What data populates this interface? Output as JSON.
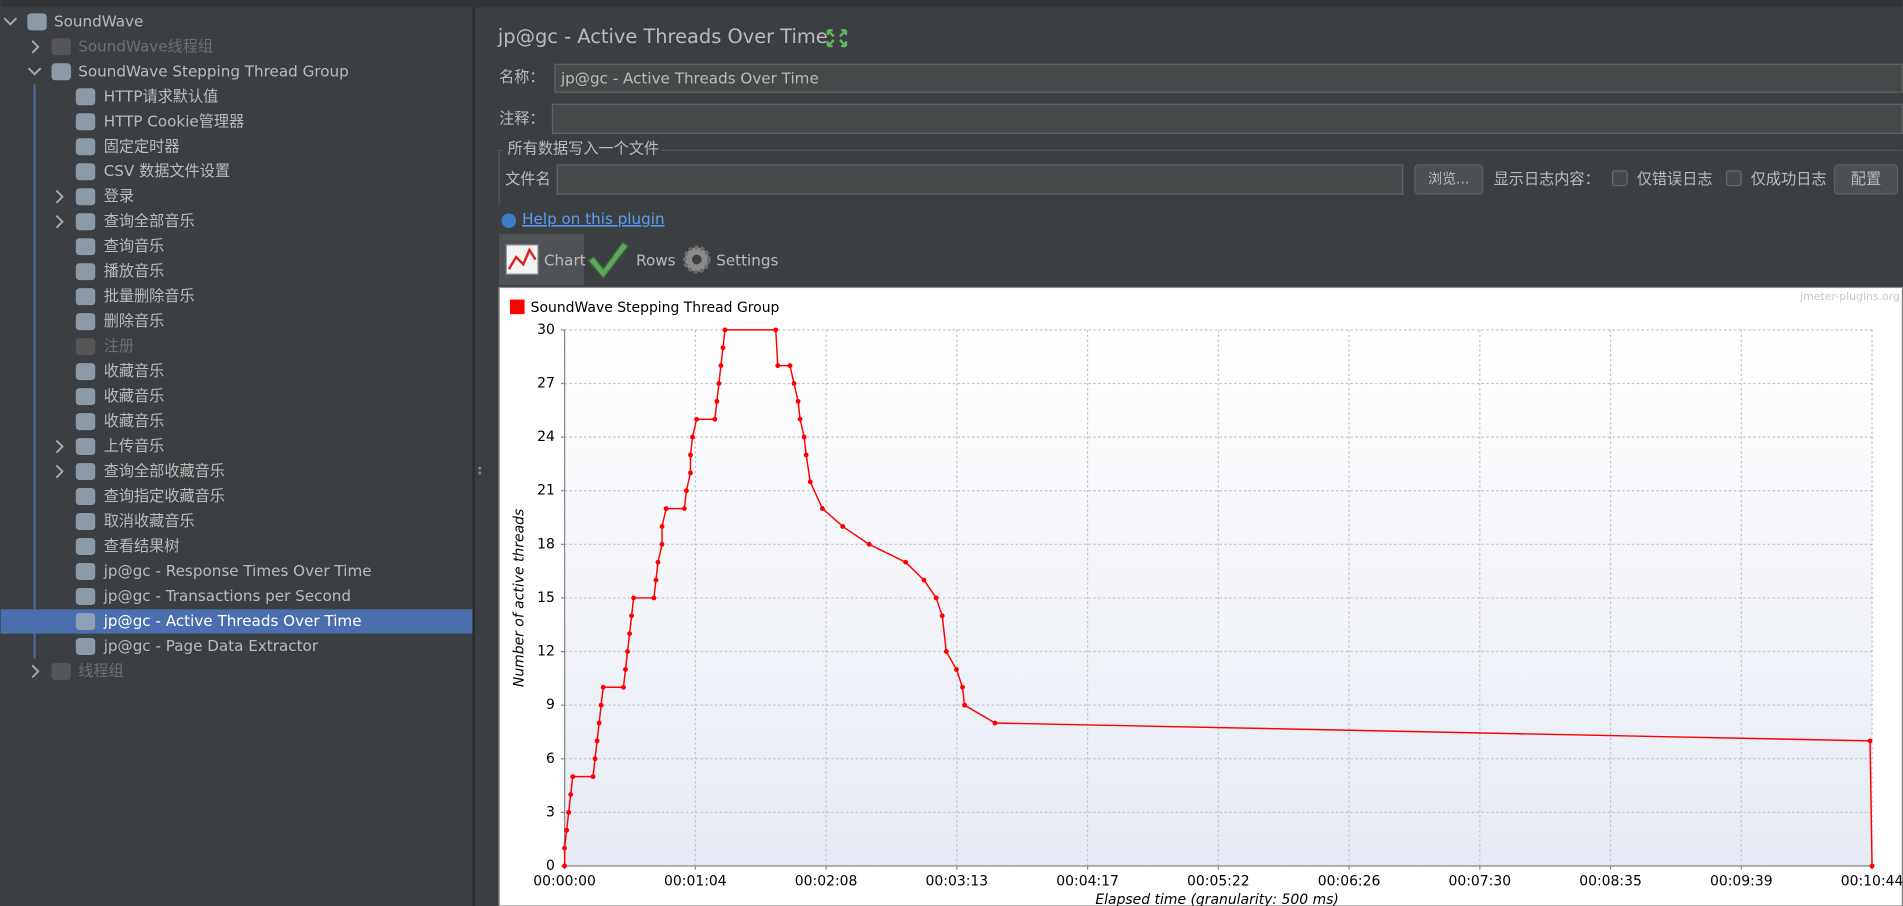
{
  "tree": {
    "label": "SoundWave",
    "children": [
      {
        "label": "SoundWave线程组",
        "disabled": true,
        "expandable": true
      },
      {
        "label": "SoundWave Stepping Thread Group",
        "children": [
          {
            "label": "HTTP请求默认值"
          },
          {
            "label": "HTTP Cookie管理器"
          },
          {
            "label": "固定定时器"
          },
          {
            "label": "CSV 数据文件设置"
          },
          {
            "label": "登录",
            "expandable": true
          },
          {
            "label": "查询全部音乐",
            "expandable": true
          },
          {
            "label": "查询音乐"
          },
          {
            "label": "播放音乐"
          },
          {
            "label": "批量删除音乐"
          },
          {
            "label": "删除音乐"
          },
          {
            "label": "注册",
            "disabled": true
          },
          {
            "label": "收藏音乐"
          },
          {
            "label": "收藏音乐"
          },
          {
            "label": "收藏音乐"
          },
          {
            "label": "上传音乐",
            "expandable": true
          },
          {
            "label": "查询全部收藏音乐",
            "expandable": true
          },
          {
            "label": "查询指定收藏音乐"
          },
          {
            "label": "取消收藏音乐"
          },
          {
            "label": "查看结果树"
          },
          {
            "label": "jp@gc - Response Times Over Time"
          },
          {
            "label": "jp@gc - Transactions per Second"
          },
          {
            "label": "jp@gc - Active Threads Over Time",
            "selected": true
          },
          {
            "label": "jp@gc - Page Data Extractor"
          }
        ]
      },
      {
        "label": "线程组",
        "disabled": true,
        "expandable": true
      }
    ]
  },
  "panel": {
    "title": "jp@gc - Active Threads Over Time",
    "name_label": "名称：",
    "name_value": "jp@gc - Active Threads Over Time",
    "comment_label": "注释：",
    "file_section": "所有数据写入一个文件",
    "file_label": "文件名",
    "browse_button": "浏览...",
    "log_label": "显示日志内容：",
    "errors_only": "仅错误日志",
    "success_only": "仅成功日志",
    "configure_button": "配置",
    "help_link": "Help on this plugin",
    "tabs": [
      "Chart",
      "Rows",
      "Settings"
    ]
  },
  "chart_data": {
    "type": "line",
    "watermark": "jmeter-plugins.org",
    "x_label": "Elapsed time (granularity: 500 ms)",
    "y_label": "Number of active threads",
    "grid": true,
    "xlim": [
      0,
      644
    ],
    "ylim": [
      0,
      30
    ],
    "xticks": [
      {
        "value": 0,
        "label": "00:00:00"
      },
      {
        "value": 64.4,
        "label": "00:01:04"
      },
      {
        "value": 128.8,
        "label": "00:02:08"
      },
      {
        "value": 193.2,
        "label": "00:03:13"
      },
      {
        "value": 257.6,
        "label": "00:04:17"
      },
      {
        "value": 322,
        "label": "00:05:22"
      },
      {
        "value": 386.4,
        "label": "00:06:26"
      },
      {
        "value": 450.8,
        "label": "00:07:30"
      },
      {
        "value": 515.2,
        "label": "00:08:35"
      },
      {
        "value": 579.6,
        "label": "00:09:39"
      },
      {
        "value": 644,
        "label": "00:10:44"
      }
    ],
    "yticks": [
      0,
      3,
      6,
      9,
      12,
      15,
      18,
      21,
      24,
      27,
      30
    ],
    "series": [
      {
        "name": "SoundWave Stepping Thread Group",
        "color": "#ff0000",
        "x": [
          0,
          0,
          1,
          2,
          3,
          4,
          14,
          15,
          16,
          17,
          18,
          19,
          29,
          30,
          31,
          32,
          33,
          34,
          44,
          45,
          46,
          48,
          48,
          50,
          59,
          60,
          62,
          62,
          63,
          65,
          74,
          75,
          76,
          77,
          78,
          79,
          104,
          105,
          111,
          113,
          115,
          116,
          118,
          119,
          121,
          127,
          137,
          150,
          168,
          177,
          183,
          186,
          188,
          193,
          196,
          197,
          212,
          643,
          644
        ],
        "values": [
          0,
          1,
          2,
          3,
          4,
          5,
          5,
          6,
          7,
          8,
          9,
          10,
          10,
          11,
          12,
          13,
          14,
          15,
          15,
          16,
          17,
          18,
          19,
          20,
          20,
          21,
          22,
          23,
          24,
          25,
          25,
          26,
          27,
          28,
          29,
          30,
          30,
          28,
          28,
          27,
          26,
          25,
          24,
          23,
          21.5,
          20,
          19,
          18,
          17,
          16,
          15,
          14,
          12,
          11,
          10,
          9,
          8,
          7,
          0
        ]
      }
    ]
  }
}
